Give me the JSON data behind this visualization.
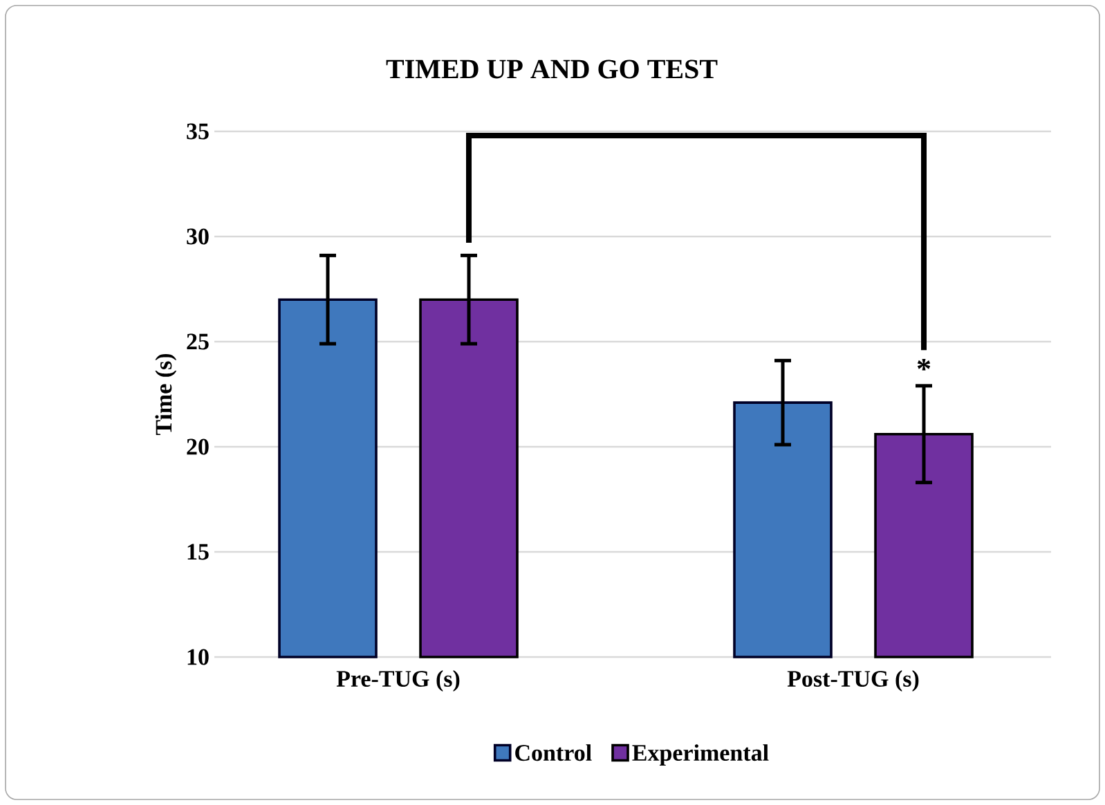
{
  "chart_data": {
    "type": "bar",
    "title": "TIMED UP AND GO TEST",
    "ylabel": "Time (s)",
    "categories": [
      "Pre-TUG (s)",
      "Post-TUG (s)"
    ],
    "series": [
      {
        "name": "Control",
        "color": "#3f78bd",
        "values": [
          27.0,
          22.1
        ],
        "errors": [
          2.1,
          2.0
        ]
      },
      {
        "name": "Experimental",
        "color": "#7030a0",
        "values": [
          27.0,
          20.6
        ],
        "errors": [
          2.1,
          2.3
        ]
      }
    ],
    "annotations": [
      "*"
    ],
    "ylim": [
      10,
      35
    ],
    "yticks": [
      10,
      15,
      20,
      25,
      30,
      35
    ],
    "grid": "y",
    "legend": "bottom"
  }
}
